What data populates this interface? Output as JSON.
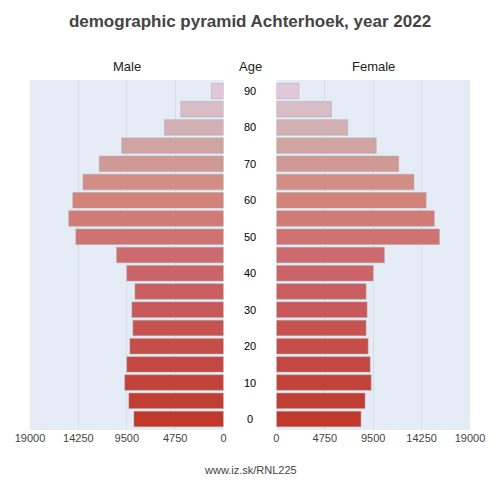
{
  "chart_data": {
    "type": "bar",
    "orientation": "horizontal",
    "title": "demographic pyramid Achterhoek, year 2022",
    "ylabel": "Age",
    "categories": [
      "0",
      null,
      "10",
      null,
      "20",
      null,
      "30",
      null,
      "40",
      null,
      "50",
      null,
      "60",
      null,
      "70",
      null,
      "80",
      null,
      "90"
    ],
    "series": [
      {
        "name": "Male",
        "values": [
          8800,
          9300,
          9700,
          9500,
          9200,
          8900,
          9000,
          8700,
          9500,
          10500,
          14500,
          15200,
          14800,
          13800,
          12200,
          10000,
          5800,
          4200,
          1200
        ]
      },
      {
        "name": "Female",
        "values": [
          8300,
          8700,
          9300,
          9200,
          9000,
          8800,
          8900,
          8800,
          9500,
          10600,
          16000,
          15500,
          14700,
          13500,
          12000,
          9800,
          7000,
          5400,
          2200
        ]
      }
    ],
    "colors": [
      "#c0392b",
      "#c13e32",
      "#c2433a",
      "#c44842",
      "#c54e49",
      "#c75351",
      "#c85859",
      "#c95e60",
      "#cb6368",
      "#cd6a6e",
      "#cf7372",
      "#d17b76",
      "#d3837a",
      "#d28e85",
      "#d09993",
      "#cfa4a1",
      "#d3b0b3",
      "#d8bcc6",
      "#dec8da"
    ],
    "xlim": [
      0,
      19000
    ],
    "xticks": [
      0,
      4750,
      9500,
      14250,
      19000
    ],
    "grid": true,
    "annotations": [
      {
        "text": "www.iz.sk/RNL225"
      }
    ]
  }
}
